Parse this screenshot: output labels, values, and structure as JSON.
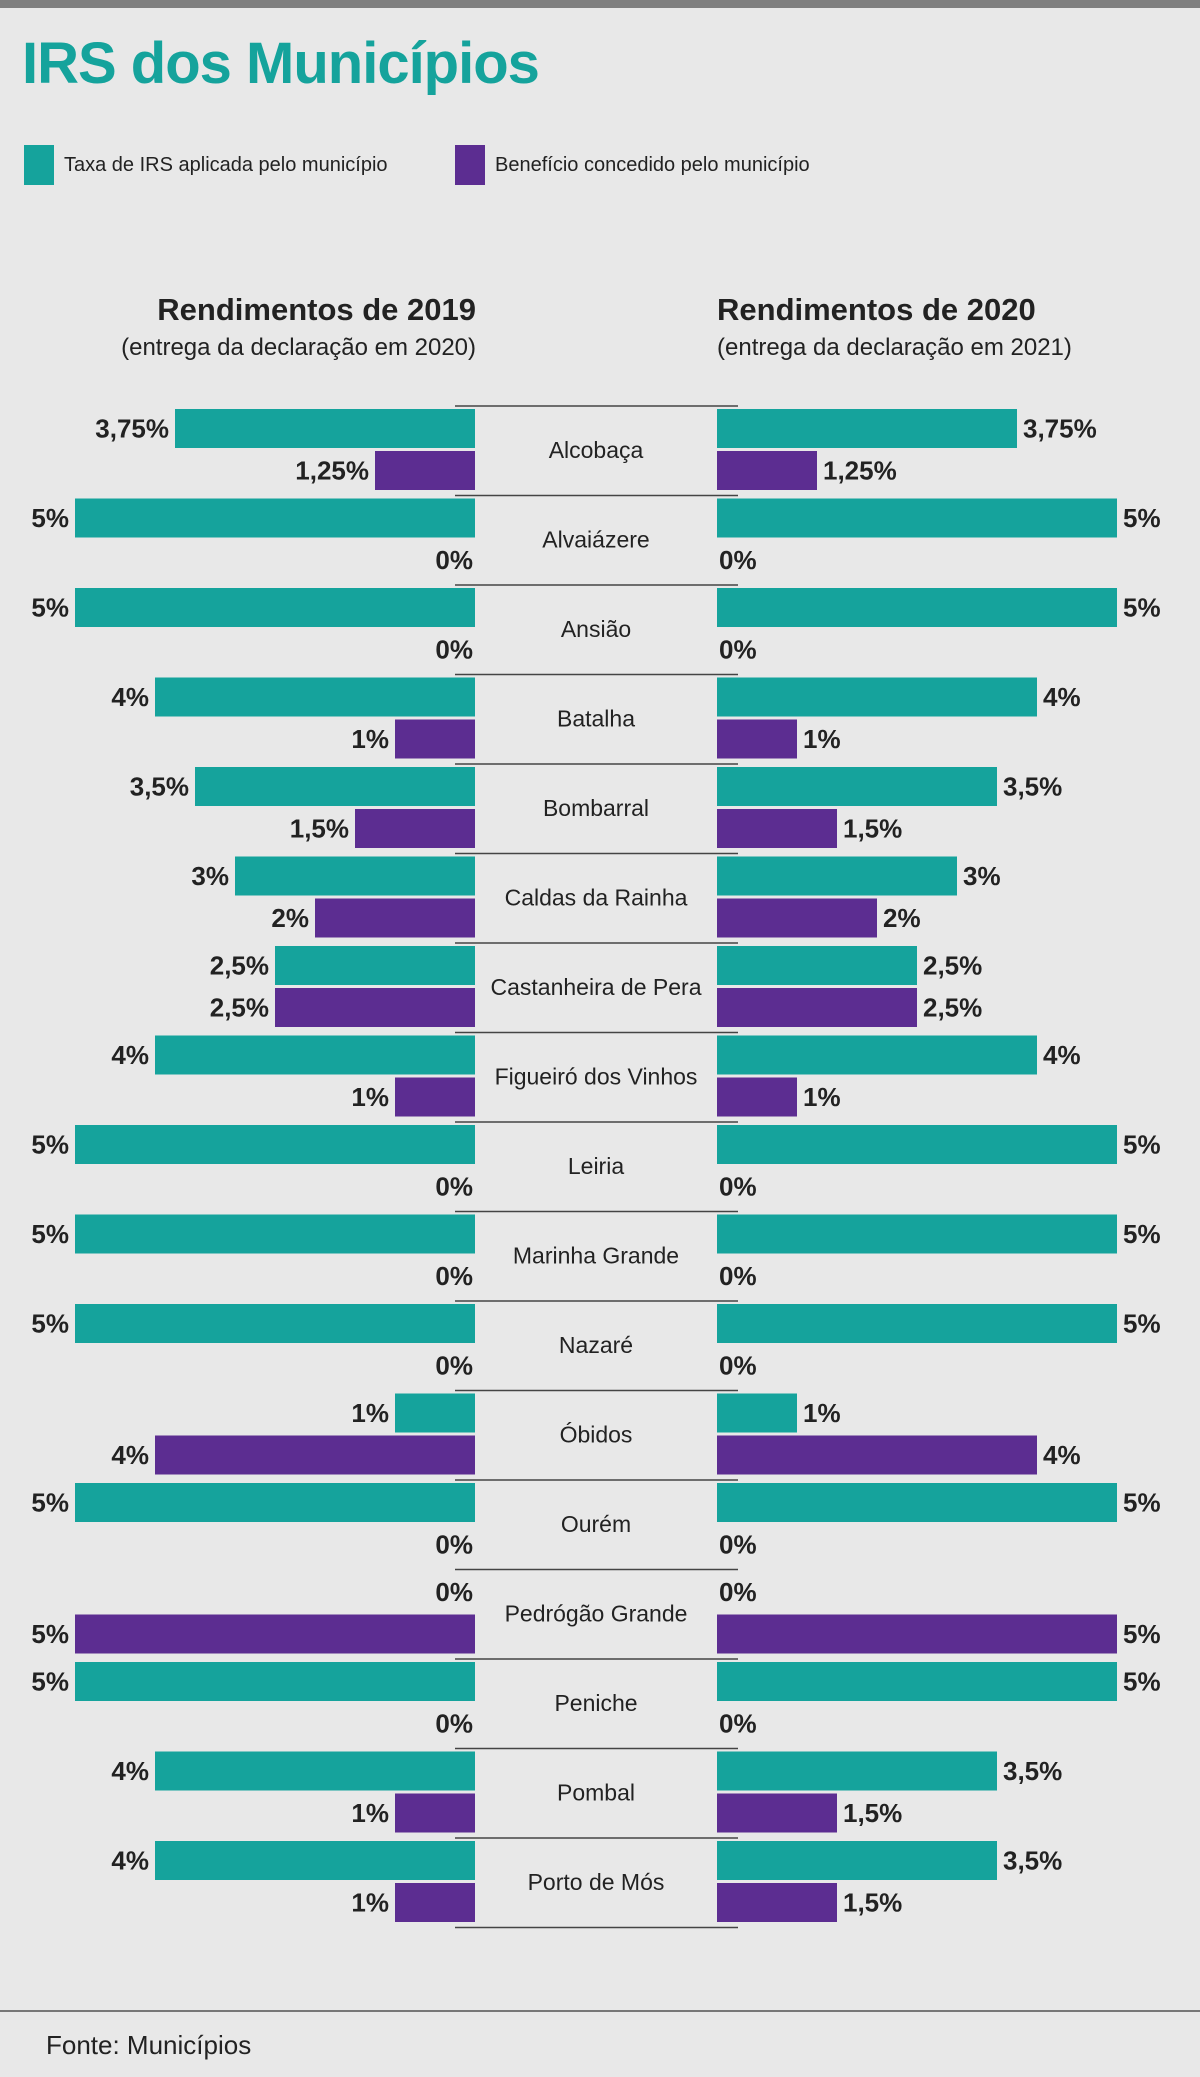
{
  "title": "IRS dos Municípios",
  "legend": {
    "taxa": "Taxa de IRS aplicada pelo município",
    "beneficio": "Benefício concedido pelo município"
  },
  "colors": {
    "taxa": "#15a39c",
    "beneficio": "#5c2d91",
    "title": "#15a39c"
  },
  "left_header": {
    "title": "Rendimentos de 2019",
    "subtitle": "(entrega da declaração em 2020)"
  },
  "right_header": {
    "title": "Rendimentos de 2020",
    "subtitle": "(entrega da declaração em 2021)"
  },
  "source": "Fonte: Municípios",
  "chart_data": {
    "type": "bar",
    "orientation": "horizontal-butterfly",
    "unit": "%",
    "categories": [
      "Alcobaça",
      "Alvaiázere",
      "Ansião",
      "Batalha",
      "Bombarral",
      "Caldas da Rainha",
      "Castanheira de Pera",
      "Figueiró dos Vinhos",
      "Leiria",
      "Marinha Grande",
      "Nazaré",
      "Óbidos",
      "Ourém",
      "Pedrógão Grande",
      "Peniche",
      "Pombal",
      "Porto de Mós"
    ],
    "xlim": [
      0,
      5
    ],
    "groups": [
      {
        "name": "Rendimentos de 2019",
        "series": [
          {
            "name": "Taxa de IRS aplicada pelo município",
            "values": [
              3.75,
              5,
              5,
              4,
              3.5,
              3,
              2.5,
              4,
              5,
              5,
              5,
              1,
              5,
              0,
              5,
              4,
              4
            ],
            "labels": [
              "3,75%",
              "5%",
              "5%",
              "4%",
              "3,5%",
              "3%",
              "2,5%",
              "4%",
              "5%",
              "5%",
              "5%",
              "1%",
              "5%",
              "0%",
              "5%",
              "4%",
              "4%"
            ]
          },
          {
            "name": "Benefício concedido pelo município",
            "values": [
              1.25,
              0,
              0,
              1,
              1.5,
              2,
              2.5,
              1,
              0,
              0,
              0,
              4,
              0,
              5,
              0,
              1,
              1
            ],
            "labels": [
              "1,25%",
              "0%",
              "0%",
              "1%",
              "1,5%",
              "2%",
              "2,5%",
              "1%",
              "0%",
              "0%",
              "0%",
              "4%",
              "0%",
              "5%",
              "0%",
              "1%",
              "1%"
            ]
          }
        ]
      },
      {
        "name": "Rendimentos de 2020",
        "series": [
          {
            "name": "Taxa de IRS aplicada pelo município",
            "values": [
              3.75,
              5,
              5,
              4,
              3.5,
              3,
              2.5,
              4,
              5,
              5,
              5,
              1,
              5,
              0,
              5,
              3.5,
              3.5
            ],
            "labels": [
              "3,75%",
              "5%",
              "5%",
              "4%",
              "3,5%",
              "3%",
              "2,5%",
              "4%",
              "5%",
              "5%",
              "5%",
              "1%",
              "5%",
              "0%",
              "5%",
              "3,5%",
              "3,5%"
            ]
          },
          {
            "name": "Benefício concedido pelo município",
            "values": [
              1.25,
              0,
              0,
              1,
              1.5,
              2,
              2.5,
              1,
              0,
              0,
              0,
              4,
              0,
              5,
              0,
              1.5,
              1.5
            ],
            "labels": [
              "1,25%",
              "0%",
              "0%",
              "1%",
              "1,5%",
              "2%",
              "2,5%",
              "1%",
              "0%",
              "0%",
              "0%",
              "4%",
              "0%",
              "5%",
              "0%",
              "1,5%",
              "1,5%"
            ]
          }
        ]
      }
    ]
  }
}
